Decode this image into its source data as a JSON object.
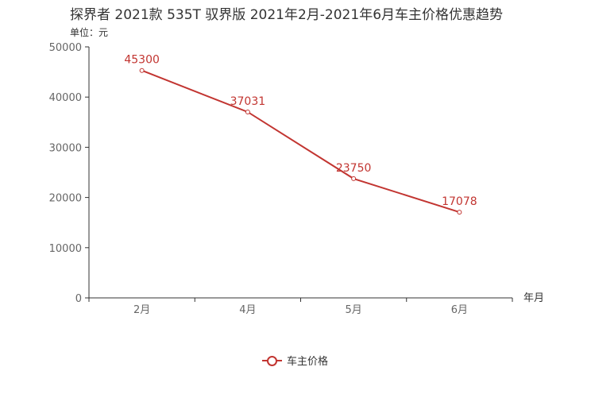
{
  "chart_data": {
    "type": "line",
    "title": "探界者 2021款 535T 驭界版 2021年2月-2021年6月车主价格优惠趋势",
    "unit_label": "单位：元",
    "xlabel": "年月",
    "ylabel": "",
    "categories": [
      "2月",
      "4月",
      "5月",
      "6月"
    ],
    "series": [
      {
        "name": "车主价格",
        "values": [
          45300,
          37031,
          23750,
          17078
        ]
      }
    ],
    "ylim": [
      0,
      50000
    ],
    "yticks": [
      0,
      10000,
      20000,
      30000,
      40000,
      50000
    ],
    "legend_position": "bottom-center",
    "grid": false
  },
  "colors": {
    "series": "#c23531",
    "axis": "#333333",
    "tick_text": "#666666"
  }
}
